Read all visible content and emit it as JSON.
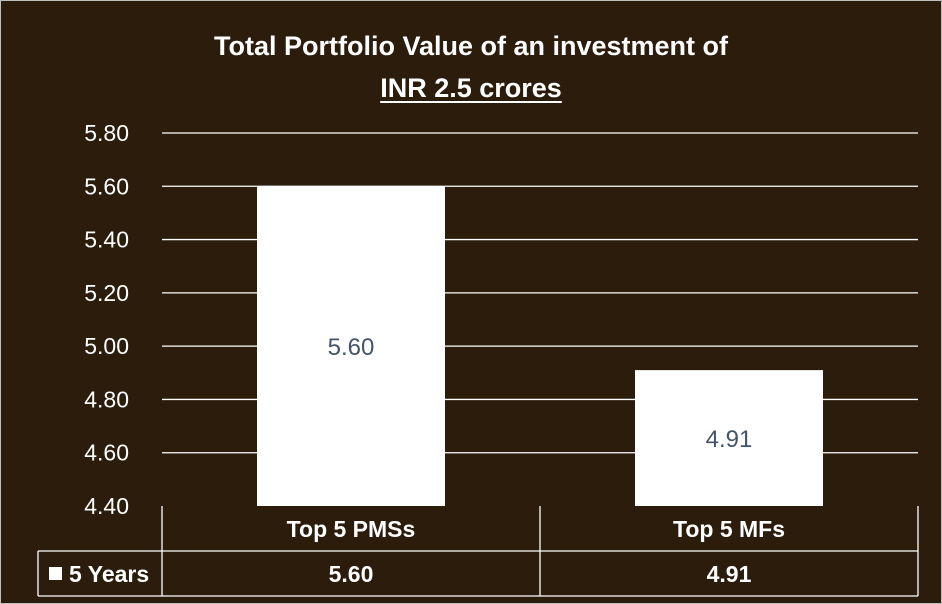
{
  "chart_data": {
    "type": "bar",
    "title_line1": "Total Portfolio Value of an investment of",
    "title_line2": "INR 2.5 crores",
    "categories": [
      "Top 5 PMSs",
      "Top 5 MFs"
    ],
    "series": [
      {
        "name": "5 Years",
        "values": [
          5.6,
          4.91
        ],
        "value_labels": [
          "5.60",
          "4.91"
        ]
      }
    ],
    "ylim": [
      4.4,
      5.8
    ],
    "yticks": [
      "4.40",
      "4.60",
      "4.80",
      "5.00",
      "5.20",
      "5.40",
      "5.60",
      "5.80"
    ],
    "grid": true,
    "legend": "data-table",
    "colors": {
      "background": "#2b1c0c",
      "bar": "#ffffff",
      "grid": "#ffffff",
      "data_label": "#44546a"
    }
  }
}
